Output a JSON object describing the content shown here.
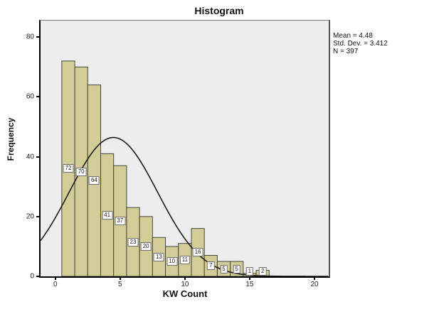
{
  "chart_data": {
    "type": "bar",
    "title": "Histogram",
    "xlabel": "KW Count",
    "ylabel": "Frequency",
    "bin_centers": [
      1,
      2,
      3,
      4,
      5,
      6,
      7,
      8,
      9,
      10,
      11,
      12,
      13,
      14,
      15,
      16
    ],
    "values": [
      72,
      70,
      64,
      41,
      37,
      23,
      20,
      13,
      10,
      11,
      16,
      7,
      5,
      5,
      1,
      2
    ],
    "bin_width": 1,
    "x_ticks": [
      0,
      5,
      10,
      15,
      20
    ],
    "y_ticks": [
      0,
      20,
      40,
      60,
      80
    ],
    "x_domain": [
      -1.14,
      21.1
    ],
    "y_domain": [
      0,
      85.5
    ],
    "grid": false,
    "legend": "none",
    "normal_curve": {
      "mean": 4.48,
      "std_dev": 3.412,
      "n": 397
    },
    "annotations": [
      "Mean = 4.48",
      "Std. Dev. = 3.412",
      "N = 397"
    ],
    "colors": {
      "bar_fill": "#D2CD96",
      "bar_border": "#45453C",
      "plot_bg": "#EDEDED",
      "curve": "#1A1A1A",
      "label_box_bg": "#FFFFFF",
      "label_box_border": "#6E6E6E"
    }
  }
}
